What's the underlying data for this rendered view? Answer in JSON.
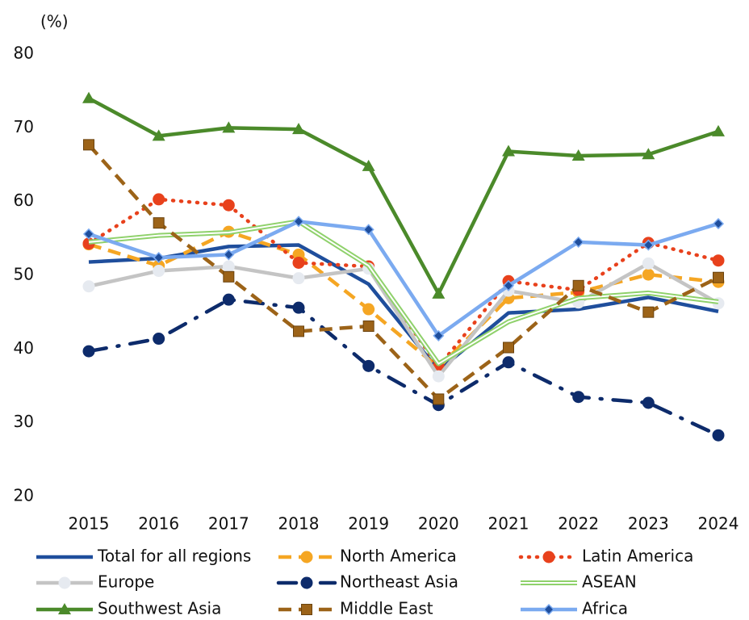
{
  "chart_data": {
    "type": "line",
    "y_label": "(%)",
    "categories": [
      "2015",
      "2016",
      "2017",
      "2018",
      "2019",
      "2020",
      "2021",
      "2022",
      "2023",
      "2024"
    ],
    "ylim": [
      20,
      80
    ],
    "yticks": [
      20,
      30,
      40,
      50,
      60,
      70,
      80
    ],
    "grid": false,
    "series": [
      {
        "name": "Total for all regions",
        "color": "#1f4e9c",
        "line": "solid",
        "marker": "none",
        "values": [
          51.8,
          52.3,
          53.9,
          54.1,
          48.8,
          37.1,
          44.9,
          45.4,
          47.0,
          45.1
        ]
      },
      {
        "name": "North America",
        "color": "#f5a623",
        "line": "dashed",
        "marker": "circle",
        "values": [
          54.2,
          51.3,
          55.9,
          52.8,
          45.4,
          37.5,
          46.9,
          47.7,
          50.1,
          49.1
        ]
      },
      {
        "name": "Latin America",
        "color": "#e8411c",
        "line": "dotted",
        "marker": "circle",
        "values": [
          54.3,
          60.3,
          59.5,
          51.7,
          51.2,
          37.6,
          49.2,
          48.0,
          54.4,
          52.0
        ]
      },
      {
        "name": "Europe",
        "color": "#c4c4c4",
        "line": "solid",
        "marker": "circle",
        "values": [
          48.5,
          50.6,
          51.2,
          49.6,
          50.9,
          36.3,
          47.9,
          46.3,
          51.6,
          46.2
        ]
      },
      {
        "name": "Northeast Asia",
        "color": "#0d2b6b",
        "line": "dashdot",
        "marker": "circle",
        "values": [
          39.7,
          41.4,
          46.7,
          45.6,
          37.7,
          32.4,
          38.2,
          33.5,
          32.7,
          28.3
        ]
      },
      {
        "name": "ASEAN",
        "color": "#8fd16b",
        "line": "double",
        "marker": "none",
        "values": [
          54.5,
          55.4,
          55.8,
          57.3,
          51.3,
          38.0,
          43.7,
          46.9,
          47.6,
          46.4
        ]
      },
      {
        "name": "Southwest Asia",
        "color": "#4b8a2a",
        "line": "solid",
        "marker": "triangle",
        "values": [
          74.0,
          68.9,
          70.0,
          69.8,
          64.8,
          47.5,
          66.8,
          66.2,
          66.4,
          69.5
        ]
      },
      {
        "name": "Middle East",
        "color": "#9c6318",
        "line": "dashed",
        "marker": "square",
        "values": [
          67.7,
          57.1,
          49.8,
          42.4,
          43.1,
          33.2,
          40.2,
          48.6,
          45.0,
          49.7
        ]
      },
      {
        "name": "Africa",
        "color": "#7baaf0",
        "line": "solid",
        "marker": "diamond",
        "values": [
          55.6,
          52.4,
          52.8,
          57.3,
          56.2,
          41.8,
          48.6,
          54.5,
          54.1,
          57.0
        ]
      }
    ]
  }
}
